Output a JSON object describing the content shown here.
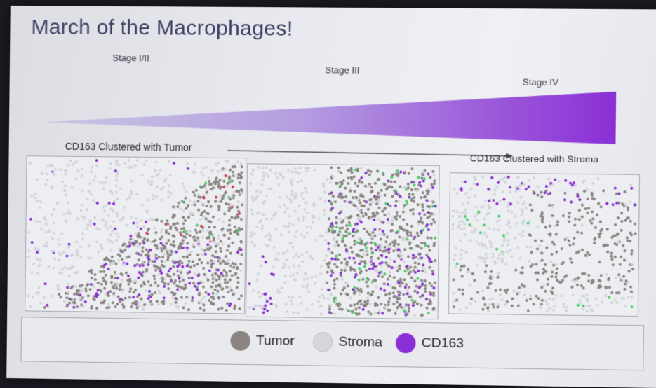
{
  "slide": {
    "title": "March of the Macrophages!",
    "stages": [
      "Stage I/II",
      "Stage III",
      "Stage IV"
    ],
    "axis_left_label": "CD163 Clustered with Tumor",
    "axis_right_label": "CD163 Clustered with Stroma"
  },
  "legend": {
    "items": [
      {
        "label": "Tumor",
        "color": "#8a8580"
      },
      {
        "label": "Stroma",
        "color": "#d6d7db"
      },
      {
        "label": "CD163",
        "color": "#8b2fd6"
      }
    ]
  },
  "colors": {
    "wedge_start": "#c9c7e4",
    "wedge_end": "#8b2fd6",
    "tumor": "#8a8580",
    "stroma": "#d3d4d8",
    "cd163": "#8b2fd6",
    "green": "#4bd06a",
    "red": "#e0304a"
  }
}
